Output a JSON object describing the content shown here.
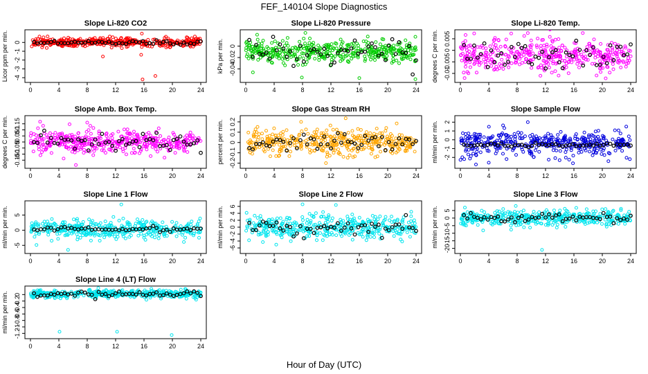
{
  "figure": {
    "title": "FEF_140104  Slope Diagnostics",
    "xlabel": "Hour of Day (UTC)"
  },
  "chart_data": [
    {
      "type": "scatter",
      "title": "Slope Li-820 CO2",
      "ylabel": "Licor ppm per min.",
      "xlim": [
        0,
        24
      ],
      "xticks": [
        0,
        4,
        8,
        12,
        16,
        20,
        24
      ],
      "ylim": [
        -4.3,
        1.2
      ],
      "yticks": [
        -4,
        -3,
        -2,
        -1,
        0
      ],
      "color": "#ff0000",
      "center": 0.0,
      "spread": 0.25,
      "outliers": [
        {
          "x": 15.8,
          "y": -4.2
        },
        {
          "x": 17.6,
          "y": -3.8
        },
        {
          "x": 15.6,
          "y": -1.4
        },
        {
          "x": 10.2,
          "y": -1.6
        },
        {
          "x": 15.7,
          "y": 1.0
        }
      ],
      "black_spread": 0.12
    },
    {
      "type": "scatter",
      "title": "Slope Li-820 Pressure",
      "ylabel": "kPa per min.",
      "xlim": [
        0,
        24
      ],
      "xticks": [
        0,
        4,
        8,
        12,
        16,
        20,
        24
      ],
      "ylim": [
        -0.06,
        0.025
      ],
      "yticks": [
        -0.04,
        -0.02,
        0.0
      ],
      "color": "#00cc00",
      "center": -0.01,
      "spread": 0.009,
      "outliers": [
        {
          "x": 1.0,
          "y": -0.046
        },
        {
          "x": 7.9,
          "y": -0.055
        },
        {
          "x": 16.0,
          "y": -0.056
        },
        {
          "x": 23.9,
          "y": -0.058
        },
        {
          "x": 1.6,
          "y": 0.02
        }
      ],
      "black_spread": 0.012
    },
    {
      "type": "scatter",
      "title": "Slope Li-820 Temp.",
      "ylabel": "degrees C per min.",
      "xlim": [
        0,
        24
      ],
      "xticks": [
        0,
        4,
        8,
        12,
        16,
        20,
        24
      ],
      "ylim": [
        -0.013,
        0.008
      ],
      "yticks": [
        -0.01,
        -0.005,
        0.0,
        0.005
      ],
      "color": "#ff00ff",
      "center": -0.002,
      "spread": 0.0035,
      "outliers": [
        {
          "x": 9.5,
          "y": 0.0075
        },
        {
          "x": 0.6,
          "y": -0.012
        }
      ],
      "black_spread": 0.003
    },
    {
      "type": "scatter",
      "title": "Slope Amb. Box Temp.",
      "ylabel": "degrees C per min.",
      "xlim": [
        0,
        24
      ],
      "xticks": [
        0,
        4,
        8,
        12,
        16,
        20,
        24
      ],
      "ylim": [
        -0.2,
        0.2
      ],
      "yticks": [
        -0.15,
        -0.1,
        -0.05,
        0.0,
        0.05,
        0.1,
        0.15
      ],
      "color": "#ff00ff",
      "center": 0.0,
      "spread": 0.05,
      "outliers": [
        {
          "x": 6.4,
          "y": -0.19
        },
        {
          "x": 8.0,
          "y": 0.16
        }
      ],
      "black_spread": 0.04
    },
    {
      "type": "scatter",
      "title": "Slope Gas Stream RH",
      "ylabel": "percent per min.",
      "xlim": [
        0,
        24
      ],
      "xticks": [
        0,
        4,
        8,
        12,
        16,
        20,
        24
      ],
      "ylim": [
        -0.23,
        0.24
      ],
      "yticks": [
        -0.2,
        -0.1,
        0.0,
        0.1,
        0.2
      ],
      "color": "#ffa500",
      "center": 0.0,
      "spread": 0.06,
      "outliers": [
        {
          "x": 11.3,
          "y": -0.2
        },
        {
          "x": 7.8,
          "y": 0.2
        }
      ],
      "black_spread": 0.04
    },
    {
      "type": "scatter",
      "title": "Slope Sample Flow",
      "ylabel": "ml/min per min.",
      "xlim": [
        0,
        24
      ],
      "xticks": [
        0,
        4,
        8,
        12,
        16,
        20,
        24
      ],
      "ylim": [
        -3,
        2.5
      ],
      "yticks": [
        -2,
        -1,
        0,
        1,
        2
      ],
      "color": "#0000dd",
      "center": -0.6,
      "spread": 0.8,
      "outliers": [
        {
          "x": 2.2,
          "y": -2.8
        },
        {
          "x": 9.5,
          "y": 2.0
        },
        {
          "x": 4.0,
          "y": -2.6
        }
      ],
      "black_spread": 0.1
    },
    {
      "type": "scatter",
      "title": "Slope Line 1 Flow",
      "ylabel": "ml/min per min.",
      "xlim": [
        0,
        24
      ],
      "xticks": [
        0,
        4,
        8,
        12,
        16,
        20,
        24
      ],
      "ylim": [
        -7,
        9
      ],
      "yticks": [
        -5,
        0,
        5
      ],
      "color": "#00e5ee",
      "center": 0.3,
      "spread": 1.5,
      "outliers": [
        {
          "x": 12.8,
          "y": 8.5
        },
        {
          "x": 5.3,
          "y": -6.5
        }
      ],
      "black_spread": 0.3
    },
    {
      "type": "scatter",
      "title": "Slope Line 2 Flow",
      "ylabel": "ml/min per min.",
      "xlim": [
        0,
        24
      ],
      "xticks": [
        0,
        4,
        8,
        12,
        16,
        20,
        24
      ],
      "ylim": [
        -7,
        7
      ],
      "yticks": [
        -6,
        -4,
        -2,
        0,
        2,
        4,
        6
      ],
      "color": "#00e5ee",
      "center": 0.0,
      "spread": 1.6,
      "outliers": [
        {
          "x": 8.0,
          "y": 6.6
        },
        {
          "x": 12.7,
          "y": 6.4
        }
      ],
      "black_spread": 1.2
    },
    {
      "type": "scatter",
      "title": "Slope Line 3 Flow",
      "ylabel": "ml/min per min.",
      "xlim": [
        0,
        24
      ],
      "xticks": [
        0,
        4,
        8,
        12,
        16,
        20,
        24
      ],
      "ylim": [
        -22,
        10
      ],
      "yticks": [
        -20,
        -15,
        -10,
        -5,
        0,
        5
      ],
      "color": "#00e5ee",
      "center": 0.0,
      "spread": 2.5,
      "outliers": [
        {
          "x": 11.5,
          "y": -21
        },
        {
          "x": 7.8,
          "y": 8.0
        }
      ],
      "black_spread": 1.5
    },
    {
      "type": "scatter",
      "title": "Slope Line 4 (LT) Flow",
      "ylabel": "ml/min per min.",
      "xlim": [
        0,
        24
      ],
      "xticks": [
        0,
        4,
        8,
        12,
        16,
        20,
        24
      ],
      "ylim": [
        -1.3,
        0.2
      ],
      "yticks": [
        -1.2,
        -1.0,
        -0.8,
        -0.6,
        -0.4,
        -0.2,
        0.0
      ],
      "color": "#00e5ee",
      "center": 0.02,
      "spread": 0.06,
      "outliers": [
        {
          "x": 4.1,
          "y": -1.15
        },
        {
          "x": 12.2,
          "y": -1.15
        },
        {
          "x": 19.9,
          "y": -1.25
        }
      ],
      "black_spread": 0.05
    }
  ]
}
